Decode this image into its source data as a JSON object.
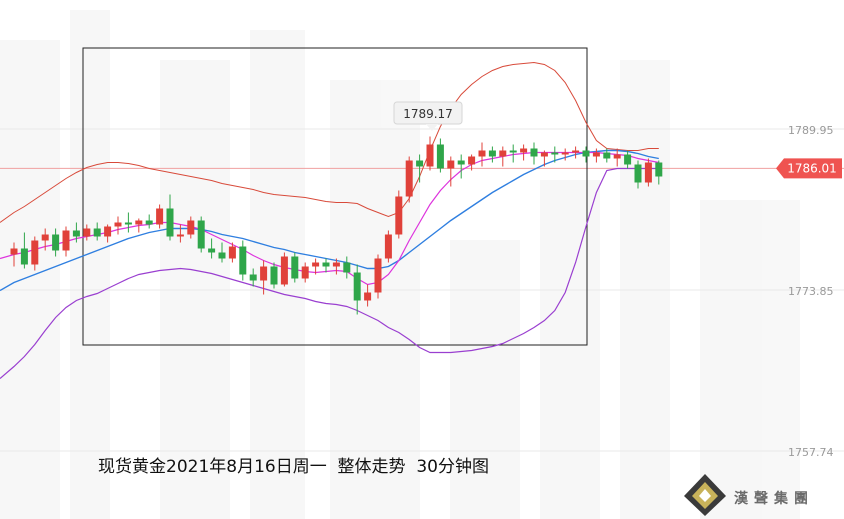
{
  "chart_data": {
    "type": "candlestick",
    "title": "现货黄金2021年8月16日周一  整体走势  30分钟图",
    "price_labels": [
      "1789.95",
      "1773.85",
      "1757.74"
    ],
    "current_price": "1786.01",
    "annotation": "1789.17",
    "ylim": [
      1750.0,
      1797.5
    ],
    "colors": {
      "up": "#e0413a",
      "down": "#2fa64a",
      "ma_blue": "#2f7fe0",
      "ma_pink": "#dd33dd",
      "band": "#d84a3a",
      "band_lower": "#9a3fd0",
      "current_line": "#f0a0a0",
      "current_tag": "#ef5350"
    },
    "candles": [
      [
        1777.4,
        1778.6,
        1776.2,
        1778.0
      ],
      [
        1778.0,
        1779.6,
        1776.0,
        1776.4
      ],
      [
        1776.4,
        1779.2,
        1775.8,
        1778.8
      ],
      [
        1778.8,
        1780.0,
        1777.8,
        1779.4
      ],
      [
        1779.4,
        1780.0,
        1777.2,
        1777.8
      ],
      [
        1777.8,
        1780.2,
        1777.2,
        1779.8
      ],
      [
        1779.8,
        1780.6,
        1778.6,
        1779.2
      ],
      [
        1779.2,
        1780.4,
        1778.8,
        1780.0
      ],
      [
        1780.0,
        1780.6,
        1778.8,
        1779.2
      ],
      [
        1779.2,
        1780.4,
        1778.6,
        1780.2
      ],
      [
        1780.2,
        1781.2,
        1779.4,
        1780.6
      ],
      [
        1780.6,
        1781.6,
        1779.6,
        1780.4
      ],
      [
        1780.4,
        1781.0,
        1779.6,
        1780.8
      ],
      [
        1780.8,
        1781.4,
        1780.0,
        1780.4
      ],
      [
        1780.4,
        1782.4,
        1780.0,
        1782.0
      ],
      [
        1782.0,
        1783.4,
        1778.8,
        1779.2
      ],
      [
        1779.2,
        1780.4,
        1778.6,
        1779.4
      ],
      [
        1779.4,
        1781.2,
        1779.0,
        1780.8
      ],
      [
        1780.8,
        1781.2,
        1777.6,
        1778.0
      ],
      [
        1778.0,
        1779.0,
        1777.0,
        1777.6
      ],
      [
        1777.6,
        1778.6,
        1776.6,
        1777.0
      ],
      [
        1777.0,
        1778.6,
        1776.6,
        1778.2
      ],
      [
        1778.2,
        1778.8,
        1774.8,
        1775.4
      ],
      [
        1775.4,
        1776.0,
        1774.2,
        1774.8
      ],
      [
        1774.8,
        1776.8,
        1773.4,
        1776.2
      ],
      [
        1776.2,
        1776.6,
        1774.0,
        1774.4
      ],
      [
        1774.4,
        1777.6,
        1774.2,
        1777.2
      ],
      [
        1777.2,
        1777.6,
        1774.6,
        1775.0
      ],
      [
        1775.0,
        1776.6,
        1774.6,
        1776.2
      ],
      [
        1776.2,
        1777.0,
        1775.4,
        1776.6
      ],
      [
        1776.6,
        1777.0,
        1775.6,
        1776.2
      ],
      [
        1776.2,
        1777.0,
        1775.4,
        1776.6
      ],
      [
        1776.6,
        1777.2,
        1775.0,
        1775.6
      ],
      [
        1775.6,
        1776.4,
        1771.4,
        1772.8
      ],
      [
        1772.8,
        1774.4,
        1772.2,
        1773.6
      ],
      [
        1773.6,
        1777.4,
        1773.0,
        1777.0
      ],
      [
        1777.0,
        1779.8,
        1776.6,
        1779.4
      ],
      [
        1779.4,
        1783.8,
        1779.0,
        1783.2
      ],
      [
        1783.2,
        1787.2,
        1782.6,
        1786.8
      ],
      [
        1786.8,
        1787.4,
        1784.6,
        1786.2
      ],
      [
        1786.2,
        1789.2,
        1785.8,
        1788.4
      ],
      [
        1788.4,
        1789.0,
        1785.6,
        1786.0
      ],
      [
        1786.0,
        1787.2,
        1784.2,
        1786.8
      ],
      [
        1786.8,
        1787.4,
        1785.0,
        1786.4
      ],
      [
        1786.4,
        1787.4,
        1785.8,
        1787.2
      ],
      [
        1787.2,
        1788.6,
        1786.2,
        1787.8
      ],
      [
        1787.8,
        1788.2,
        1786.6,
        1787.2
      ],
      [
        1787.2,
        1788.2,
        1786.2,
        1787.8
      ],
      [
        1787.8,
        1788.4,
        1786.6,
        1787.6
      ],
      [
        1787.6,
        1788.4,
        1786.8,
        1788.0
      ],
      [
        1788.0,
        1788.6,
        1786.4,
        1787.2
      ],
      [
        1787.2,
        1787.8,
        1786.2,
        1787.6
      ],
      [
        1787.6,
        1788.2,
        1786.6,
        1787.4
      ],
      [
        1787.4,
        1788.0,
        1786.8,
        1787.6
      ],
      [
        1787.6,
        1788.2,
        1787.0,
        1787.8
      ],
      [
        1787.8,
        1788.2,
        1786.6,
        1787.2
      ],
      [
        1787.2,
        1788.0,
        1786.6,
        1787.6
      ],
      [
        1787.6,
        1788.0,
        1786.6,
        1787.0
      ],
      [
        1787.0,
        1788.0,
        1786.2,
        1787.4
      ],
      [
        1787.4,
        1787.8,
        1786.0,
        1786.4
      ],
      [
        1786.4,
        1786.8,
        1784.0,
        1784.6
      ],
      [
        1784.6,
        1787.0,
        1784.2,
        1786.6
      ],
      [
        1786.6,
        1786.8,
        1784.4,
        1785.2
      ]
    ],
    "ma_blue": [
      1774.6,
      1775.0,
      1775.4,
      1775.8,
      1776.2,
      1776.6,
      1777.0,
      1777.4,
      1777.8,
      1778.2,
      1778.6,
      1779.0,
      1779.3,
      1779.6,
      1779.8,
      1780.0,
      1780.0,
      1780.0,
      1779.9,
      1779.7,
      1779.4,
      1779.2,
      1779.0,
      1778.7,
      1778.4,
      1778.1,
      1777.9,
      1777.6,
      1777.4,
      1777.2,
      1777.0,
      1776.8,
      1776.6,
      1776.3,
      1776.0,
      1776.0,
      1776.2,
      1776.8,
      1777.6,
      1778.4,
      1779.2,
      1780.0,
      1780.8,
      1781.5,
      1782.2,
      1782.9,
      1783.6,
      1784.2,
      1784.8,
      1785.4,
      1785.9,
      1786.4,
      1786.8,
      1787.1,
      1787.4,
      1787.6,
      1787.7,
      1787.8,
      1787.8,
      1787.7,
      1787.5,
      1787.2,
      1787.0
    ],
    "ma_pink": [
      1777.4,
      1777.6,
      1777.9,
      1778.2,
      1778.4,
      1778.7,
      1779.0,
      1779.2,
      1779.4,
      1779.6,
      1779.9,
      1780.1,
      1780.3,
      1780.4,
      1780.6,
      1780.6,
      1780.4,
      1780.2,
      1779.9,
      1779.4,
      1778.9,
      1778.4,
      1777.9,
      1777.3,
      1776.8,
      1776.4,
      1776.1,
      1775.9,
      1775.7,
      1775.6,
      1775.7,
      1775.8,
      1775.7,
      1775.0,
      1774.4,
      1774.6,
      1775.4,
      1776.8,
      1778.8,
      1780.6,
      1782.4,
      1783.8,
      1784.9,
      1785.8,
      1786.4,
      1786.8,
      1787.0,
      1787.2,
      1787.4,
      1787.5,
      1787.6,
      1787.6,
      1787.6,
      1787.6,
      1787.6,
      1787.6,
      1787.6,
      1787.5,
      1787.4,
      1787.3,
      1787.0,
      1786.8,
      1786.6
    ],
    "band_upper": [
      1781.6,
      1782.2,
      1782.9,
      1783.6,
      1784.3,
      1785.0,
      1785.6,
      1786.1,
      1786.4,
      1786.6,
      1786.6,
      1786.5,
      1786.3,
      1786.0,
      1785.8,
      1785.6,
      1785.4,
      1785.2,
      1785.0,
      1784.8,
      1784.5,
      1784.3,
      1784.1,
      1783.9,
      1783.6,
      1783.4,
      1783.3,
      1783.2,
      1783.1,
      1782.9,
      1782.7,
      1782.6,
      1782.6,
      1782.5,
      1782.0,
      1781.6,
      1781.2,
      1781.6,
      1783.0,
      1785.2,
      1787.8,
      1790.2,
      1792.0,
      1793.4,
      1794.4,
      1795.2,
      1795.8,
      1796.2,
      1796.4,
      1796.5,
      1796.6,
      1796.4,
      1795.8,
      1794.6,
      1792.8,
      1790.6,
      1788.8,
      1788.0,
      1787.9,
      1787.8,
      1787.8,
      1788.0,
      1788.0
    ],
    "band_lower": [
      1766.2,
      1767.2,
      1768.4,
      1769.8,
      1771.1,
      1772.1,
      1772.8,
      1773.2,
      1773.5,
      1774.0,
      1774.5,
      1775.0,
      1775.4,
      1775.6,
      1775.8,
      1775.9,
      1776.0,
      1775.9,
      1775.7,
      1775.5,
      1775.2,
      1774.9,
      1774.6,
      1774.3,
      1774.0,
      1773.7,
      1773.4,
      1773.2,
      1773.0,
      1772.7,
      1772.5,
      1772.4,
      1772.2,
      1771.8,
      1771.3,
      1770.8,
      1770.1,
      1769.6,
      1768.9,
      1768.1,
      1767.6,
      1767.6,
      1767.6,
      1767.7,
      1767.8,
      1768.0,
      1768.2,
      1768.5,
      1769.0,
      1769.5,
      1770.1,
      1770.8,
      1771.8,
      1773.6,
      1776.6,
      1780.2,
      1783.6,
      1785.8,
      1786.0,
      1786.0,
      1786.0,
      1786.0,
      1786.0
    ]
  },
  "branding": {
    "logo_text": "漢聲集團"
  }
}
